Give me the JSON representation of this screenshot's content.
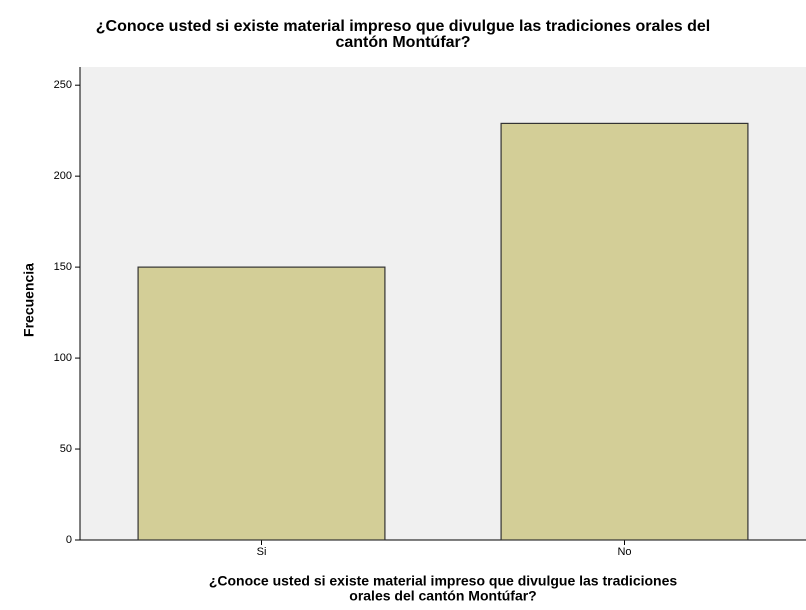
{
  "chart_data": {
    "type": "bar",
    "title": [
      "¿Conoce usted si existe material impreso que divulgue las tradiciones orales del",
      "cantón Montúfar?"
    ],
    "x_label": [
      "¿Conoce usted si existe material impreso que divulgue las tradiciones",
      "orales del cantón Montúfar?"
    ],
    "y_label": "Frecuencia",
    "categories": [
      "Si",
      "No"
    ],
    "values": [
      150,
      229
    ],
    "color": "#d3ce97",
    "ylim": [
      0,
      260
    ],
    "yticks": [
      0,
      50,
      100,
      150,
      200,
      250
    ],
    "grid": false
  }
}
